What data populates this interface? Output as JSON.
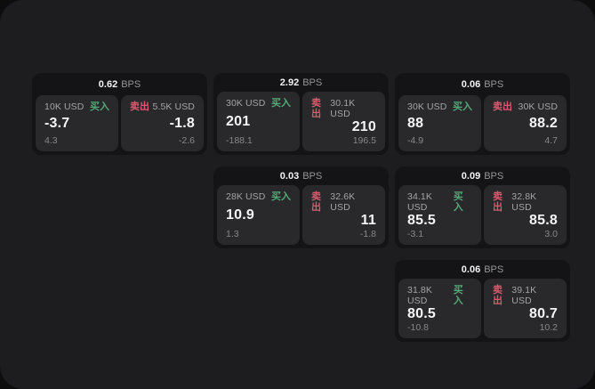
{
  "labels": {
    "buy": "买入",
    "sell": "卖出",
    "unit": "BPS"
  },
  "colors": {
    "buy_green": "#55a878",
    "sell_red": "#d95a6c",
    "panel_bg": "#1d1d1f",
    "card_bg": "#141416",
    "tile_bg": "#29292b"
  },
  "cards": [
    {
      "col": 1,
      "row": 1,
      "bps": "0.62",
      "buy": {
        "size": "10K USD",
        "price": "-3.7",
        "change": "4.3"
      },
      "sell": {
        "size": "5.5K USD",
        "price": "-1.8",
        "change": "-2.6"
      }
    },
    {
      "col": 2,
      "row": 1,
      "bps": "2.92",
      "buy": {
        "size": "30K USD",
        "price": "201",
        "change": "-188.1"
      },
      "sell": {
        "size": "30.1K USD",
        "price": "210",
        "change": "196.5"
      }
    },
    {
      "col": 3,
      "row": 1,
      "bps": "0.06",
      "buy": {
        "size": "30K USD",
        "price": "88",
        "change": "-4.9"
      },
      "sell": {
        "size": "30K USD",
        "price": "88.2",
        "change": "4.7"
      }
    },
    {
      "col": 2,
      "row": 2,
      "bps": "0.03",
      "buy": {
        "size": "28K USD",
        "price": "10.9",
        "change": "1.3"
      },
      "sell": {
        "size": "32.6K USD",
        "price": "11",
        "change": "-1.8"
      }
    },
    {
      "col": 3,
      "row": 2,
      "bps": "0.09",
      "buy": {
        "size": "34.1K USD",
        "price": "85.5",
        "change": "-3.1"
      },
      "sell": {
        "size": "32.8K USD",
        "price": "85.8",
        "change": "3.0"
      }
    },
    {
      "col": 3,
      "row": 3,
      "bps": "0.06",
      "buy": {
        "size": "31.8K USD",
        "price": "80.5",
        "change": "-10.8"
      },
      "sell": {
        "size": "39.1K USD",
        "price": "80.7",
        "change": "10.2"
      }
    }
  ]
}
